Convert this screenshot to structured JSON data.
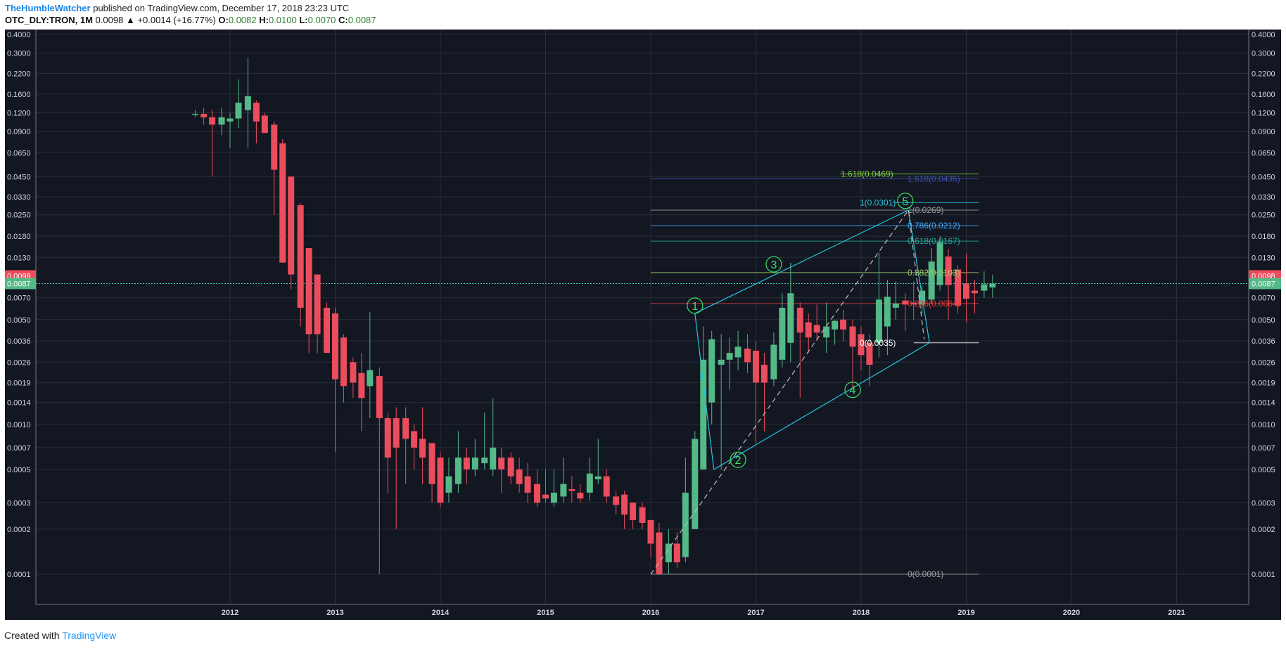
{
  "header": {
    "author": "TheHumbleWatcher",
    "published": "published on TradingView.com, December 17, 2018 23:23 UTC",
    "symbol": "OTC_DLY:TRON, 1M",
    "last": "0.0098",
    "change": "▲ +0.0014 (+16.77%)",
    "o_label": "O:",
    "o_value": "0.0082",
    "h_label": "H:",
    "h_value": "0.0100",
    "l_label": "L:",
    "l_value": "0.0070",
    "c_label": "C:",
    "c_value": "0.0087"
  },
  "footer": {
    "created_with": "Created with",
    "brand": "TradingView"
  },
  "colors": {
    "background": "#131722",
    "up": "#53b987",
    "down": "#eb4d5c",
    "grid": "#2a2e39",
    "axis_text": "#d1d4dc",
    "wave": "#26c6da"
  },
  "chart_data": {
    "type": "candlestick",
    "scale": "log",
    "ylim": [
      0.0001,
      0.4
    ],
    "y_ticks": [
      "0.4000",
      "0.3000",
      "0.2200",
      "0.1600",
      "0.1200",
      "0.0900",
      "0.0650",
      "0.0450",
      "0.0330",
      "0.0250",
      "0.0180",
      "0.0130",
      "0.0098",
      "0.0087",
      "0.0070",
      "0.0050",
      "0.0036",
      "0.0026",
      "0.0019",
      "0.0014",
      "0.0010",
      "0.0007",
      "0.0005",
      "0.0003",
      "0.0002",
      "0.0001"
    ],
    "x_ticks": [
      "2012",
      "2013",
      "2014",
      "2015",
      "2016",
      "2017",
      "2018",
      "2019",
      "2020",
      "2021"
    ],
    "price_badges": [
      {
        "label": "0.0098",
        "value": 0.0098,
        "color": "#eb4d5c"
      },
      {
        "label": "0.0087",
        "value": 0.0087,
        "color": "#53b987"
      }
    ],
    "candles": [
      {
        "t": 2011.67,
        "o": 0.118,
        "h": 0.125,
        "l": 0.112,
        "c": 0.118
      },
      {
        "t": 2011.75,
        "o": 0.118,
        "h": 0.13,
        "l": 0.1,
        "c": 0.112
      },
      {
        "t": 2011.83,
        "o": 0.112,
        "h": 0.125,
        "l": 0.045,
        "c": 0.1
      },
      {
        "t": 2011.92,
        "o": 0.1,
        "h": 0.13,
        "l": 0.085,
        "c": 0.112
      },
      {
        "t": 2012.0,
        "o": 0.105,
        "h": 0.12,
        "l": 0.07,
        "c": 0.11
      },
      {
        "t": 2012.08,
        "o": 0.11,
        "h": 0.2,
        "l": 0.095,
        "c": 0.14
      },
      {
        "t": 2012.17,
        "o": 0.125,
        "h": 0.28,
        "l": 0.07,
        "c": 0.155
      },
      {
        "t": 2012.25,
        "o": 0.14,
        "h": 0.145,
        "l": 0.075,
        "c": 0.105
      },
      {
        "t": 2012.33,
        "o": 0.115,
        "h": 0.12,
        "l": 0.09,
        "c": 0.088
      },
      {
        "t": 2012.42,
        "o": 0.1,
        "h": 0.105,
        "l": 0.025,
        "c": 0.05
      },
      {
        "t": 2012.5,
        "o": 0.075,
        "h": 0.08,
        "l": 0.012,
        "c": 0.012
      },
      {
        "t": 2012.58,
        "o": 0.045,
        "h": 0.045,
        "l": 0.008,
        "c": 0.01
      },
      {
        "t": 2012.67,
        "o": 0.029,
        "h": 0.03,
        "l": 0.0045,
        "c": 0.006
      },
      {
        "t": 2012.75,
        "o": 0.015,
        "h": 0.015,
        "l": 0.003,
        "c": 0.004
      },
      {
        "t": 2012.83,
        "o": 0.01,
        "h": 0.01,
        "l": 0.003,
        "c": 0.004
      },
      {
        "t": 2012.92,
        "o": 0.006,
        "h": 0.0065,
        "l": 0.003,
        "c": 0.003
      },
      {
        "t": 2013.0,
        "o": 0.0055,
        "h": 0.006,
        "l": 0.00065,
        "c": 0.002
      },
      {
        "t": 2013.08,
        "o": 0.0038,
        "h": 0.004,
        "l": 0.0014,
        "c": 0.0018
      },
      {
        "t": 2013.17,
        "o": 0.0026,
        "h": 0.0028,
        "l": 0.0015,
        "c": 0.0019
      },
      {
        "t": 2013.25,
        "o": 0.0022,
        "h": 0.003,
        "l": 0.0009,
        "c": 0.0015
      },
      {
        "t": 2013.33,
        "o": 0.0018,
        "h": 0.0056,
        "l": 0.0011,
        "c": 0.0023
      },
      {
        "t": 2013.42,
        "o": 0.0021,
        "h": 0.0024,
        "l": 0.0001,
        "c": 0.0011
      },
      {
        "t": 2013.5,
        "o": 0.0011,
        "h": 0.0012,
        "l": 0.00035,
        "c": 0.0006
      },
      {
        "t": 2013.58,
        "o": 0.0011,
        "h": 0.0013,
        "l": 0.0002,
        "c": 0.0007
      },
      {
        "t": 2013.67,
        "o": 0.0011,
        "h": 0.0013,
        "l": 0.0004,
        "c": 0.0008
      },
      {
        "t": 2013.75,
        "o": 0.0009,
        "h": 0.001,
        "l": 0.0005,
        "c": 0.0007
      },
      {
        "t": 2013.83,
        "o": 0.0008,
        "h": 0.0013,
        "l": 0.0004,
        "c": 0.0006
      },
      {
        "t": 2013.92,
        "o": 0.00075,
        "h": 0.00075,
        "l": 0.0003,
        "c": 0.0004
      },
      {
        "t": 2014.0,
        "o": 0.0006,
        "h": 0.00065,
        "l": 0.00028,
        "c": 0.0003
      },
      {
        "t": 2014.08,
        "o": 0.00035,
        "h": 0.0006,
        "l": 0.0003,
        "c": 0.00045
      },
      {
        "t": 2014.17,
        "o": 0.0004,
        "h": 0.0009,
        "l": 0.00035,
        "c": 0.0006
      },
      {
        "t": 2014.25,
        "o": 0.0006,
        "h": 0.0007,
        "l": 0.0004,
        "c": 0.0005
      },
      {
        "t": 2014.33,
        "o": 0.0005,
        "h": 0.0008,
        "l": 0.00045,
        "c": 0.0006
      },
      {
        "t": 2014.42,
        "o": 0.00055,
        "h": 0.0012,
        "l": 0.0005,
        "c": 0.0006
      },
      {
        "t": 2014.5,
        "o": 0.0005,
        "h": 0.0015,
        "l": 0.00045,
        "c": 0.0007
      },
      {
        "t": 2014.58,
        "o": 0.0006,
        "h": 0.0007,
        "l": 0.00035,
        "c": 0.0005
      },
      {
        "t": 2014.67,
        "o": 0.0006,
        "h": 0.00065,
        "l": 0.0004,
        "c": 0.00045
      },
      {
        "t": 2014.75,
        "o": 0.0005,
        "h": 0.0006,
        "l": 0.00035,
        "c": 0.0004
      },
      {
        "t": 2014.83,
        "o": 0.00045,
        "h": 0.00055,
        "l": 0.0003,
        "c": 0.00035
      },
      {
        "t": 2014.92,
        "o": 0.0004,
        "h": 0.0005,
        "l": 0.00028,
        "c": 0.0003
      },
      {
        "t": 2015.0,
        "o": 0.00034,
        "h": 0.0005,
        "l": 0.0003,
        "c": 0.00032
      },
      {
        "t": 2015.08,
        "o": 0.0003,
        "h": 0.0005,
        "l": 0.00028,
        "c": 0.00035
      },
      {
        "t": 2015.17,
        "o": 0.00033,
        "h": 0.0006,
        "l": 0.0003,
        "c": 0.0004
      },
      {
        "t": 2015.25,
        "o": 0.00037,
        "h": 0.00045,
        "l": 0.0003,
        "c": 0.00036
      },
      {
        "t": 2015.33,
        "o": 0.00035,
        "h": 0.0004,
        "l": 0.0003,
        "c": 0.00032
      },
      {
        "t": 2015.42,
        "o": 0.00035,
        "h": 0.0006,
        "l": 0.00031,
        "c": 0.00047
      },
      {
        "t": 2015.5,
        "o": 0.00043,
        "h": 0.0008,
        "l": 0.0004,
        "c": 0.00045
      },
      {
        "t": 2015.58,
        "o": 0.00045,
        "h": 0.0005,
        "l": 0.0003,
        "c": 0.00033
      },
      {
        "t": 2015.67,
        "o": 0.00033,
        "h": 0.00036,
        "l": 0.00025,
        "c": 0.00029
      },
      {
        "t": 2015.75,
        "o": 0.00034,
        "h": 0.00036,
        "l": 0.0002,
        "c": 0.00025
      },
      {
        "t": 2015.83,
        "o": 0.0003,
        "h": 0.0003,
        "l": 0.0002,
        "c": 0.00023
      },
      {
        "t": 2015.92,
        "o": 0.00028,
        "h": 0.0003,
        "l": 0.0002,
        "c": 0.00022
      },
      {
        "t": 2016.0,
        "o": 0.00023,
        "h": 0.00023,
        "l": 0.00013,
        "c": 0.00016
      },
      {
        "t": 2016.08,
        "o": 0.00019,
        "h": 0.00022,
        "l": 0.0001,
        "c": 0.0001
      },
      {
        "t": 2016.17,
        "o": 0.00012,
        "h": 0.0002,
        "l": 0.0001,
        "c": 0.00016
      },
      {
        "t": 2016.25,
        "o": 0.00016,
        "h": 0.00019,
        "l": 0.00011,
        "c": 0.00012
      },
      {
        "t": 2016.33,
        "o": 0.00013,
        "h": 0.0006,
        "l": 0.00012,
        "c": 0.00035
      },
      {
        "t": 2016.42,
        "o": 0.0002,
        "h": 0.0009,
        "l": 0.0002,
        "c": 0.0008
      },
      {
        "t": 2016.5,
        "o": 0.0005,
        "h": 0.0045,
        "l": 0.0005,
        "c": 0.0027
      },
      {
        "t": 2016.58,
        "o": 0.0014,
        "h": 0.0042,
        "l": 0.001,
        "c": 0.0037
      },
      {
        "t": 2016.67,
        "o": 0.0025,
        "h": 0.004,
        "l": 0.0005,
        "c": 0.0027
      },
      {
        "t": 2016.75,
        "o": 0.0027,
        "h": 0.0038,
        "l": 0.0017,
        "c": 0.003
      },
      {
        "t": 2016.83,
        "o": 0.0028,
        "h": 0.0042,
        "l": 0.0023,
        "c": 0.0033
      },
      {
        "t": 2016.92,
        "o": 0.0032,
        "h": 0.004,
        "l": 0.0022,
        "c": 0.0026
      },
      {
        "t": 2017.0,
        "o": 0.0031,
        "h": 0.0036,
        "l": 0.00075,
        "c": 0.0019
      },
      {
        "t": 2017.08,
        "o": 0.0025,
        "h": 0.003,
        "l": 0.0009,
        "c": 0.0019
      },
      {
        "t": 2017.17,
        "o": 0.002,
        "h": 0.0041,
        "l": 0.0018,
        "c": 0.0034
      },
      {
        "t": 2017.25,
        "o": 0.0027,
        "h": 0.0075,
        "l": 0.0024,
        "c": 0.006
      },
      {
        "t": 2017.33,
        "o": 0.0035,
        "h": 0.012,
        "l": 0.0026,
        "c": 0.0075
      },
      {
        "t": 2017.42,
        "o": 0.006,
        "h": 0.0065,
        "l": 0.0015,
        "c": 0.0041
      },
      {
        "t": 2017.5,
        "o": 0.0048,
        "h": 0.0055,
        "l": 0.003,
        "c": 0.0038
      },
      {
        "t": 2017.58,
        "o": 0.0046,
        "h": 0.0063,
        "l": 0.0036,
        "c": 0.0041
      },
      {
        "t": 2017.67,
        "o": 0.0038,
        "h": 0.0065,
        "l": 0.003,
        "c": 0.0045
      },
      {
        "t": 2017.75,
        "o": 0.0043,
        "h": 0.005,
        "l": 0.0034,
        "c": 0.0049
      },
      {
        "t": 2017.83,
        "o": 0.005,
        "h": 0.0058,
        "l": 0.0036,
        "c": 0.0043
      },
      {
        "t": 2017.92,
        "o": 0.0045,
        "h": 0.005,
        "l": 0.0017,
        "c": 0.0033
      },
      {
        "t": 2018.0,
        "o": 0.004,
        "h": 0.0045,
        "l": 0.0023,
        "c": 0.0029
      },
      {
        "t": 2018.08,
        "o": 0.0035,
        "h": 0.004,
        "l": 0.0018,
        "c": 0.0025
      },
      {
        "t": 2018.17,
        "o": 0.0035,
        "h": 0.014,
        "l": 0.0028,
        "c": 0.0068
      },
      {
        "t": 2018.25,
        "o": 0.0045,
        "h": 0.0092,
        "l": 0.0029,
        "c": 0.0071
      },
      {
        "t": 2018.33,
        "o": 0.006,
        "h": 0.009,
        "l": 0.005,
        "c": 0.0064
      },
      {
        "t": 2018.42,
        "o": 0.0067,
        "h": 0.0075,
        "l": 0.0042,
        "c": 0.0063
      },
      {
        "t": 2018.5,
        "o": 0.0065,
        "h": 0.009,
        "l": 0.005,
        "c": 0.0063
      },
      {
        "t": 2018.58,
        "o": 0.0063,
        "h": 0.0085,
        "l": 0.0055,
        "c": 0.0078
      },
      {
        "t": 2018.67,
        "o": 0.0068,
        "h": 0.015,
        "l": 0.0064,
        "c": 0.0122
      },
      {
        "t": 2018.75,
        "o": 0.0085,
        "h": 0.018,
        "l": 0.0078,
        "c": 0.0165
      },
      {
        "t": 2018.83,
        "o": 0.0132,
        "h": 0.0148,
        "l": 0.005,
        "c": 0.0085
      },
      {
        "t": 2018.92,
        "o": 0.0108,
        "h": 0.0115,
        "l": 0.0055,
        "c": 0.0062
      },
      {
        "t": 2019.0,
        "o": 0.0087,
        "h": 0.0138,
        "l": 0.0048,
        "c": 0.0069
      },
      {
        "t": 2019.08,
        "o": 0.0078,
        "h": 0.0092,
        "l": 0.0055,
        "c": 0.0075
      },
      {
        "t": 2019.17,
        "o": 0.0078,
        "h": 0.0105,
        "l": 0.007,
        "c": 0.0086
      },
      {
        "t": 2019.25,
        "o": 0.0082,
        "h": 0.01,
        "l": 0.007,
        "c": 0.0087
      }
    ],
    "fib_levels": [
      {
        "label": "1.618(0.0469)",
        "value": 0.0469,
        "color": "#7fd33a",
        "x0": 2017.8,
        "x1": 2019.12
      },
      {
        "label": "1.618(0.0435)",
        "value": 0.0435,
        "color": "#3f51b5",
        "x0": 2016.0,
        "x1": 2019.12
      },
      {
        "label": "1(0.0301)",
        "value": 0.0301,
        "color": "#26c6da",
        "x0": 2018.3,
        "x1": 2019.12
      },
      {
        "label": "1(0.0269)",
        "value": 0.0269,
        "color": "#9e9e9e",
        "x0": 2016.0,
        "x1": 2019.12
      },
      {
        "label": "0.786(0.0212)",
        "value": 0.0212,
        "color": "#42a5f5",
        "x0": 2016.0,
        "x1": 2019.12
      },
      {
        "label": "0.618(0.0167)",
        "value": 0.0167,
        "color": "#26a69a",
        "x0": 2016.0,
        "x1": 2019.12
      },
      {
        "label": "0.382(0.0103)",
        "value": 0.0103,
        "color": "#9ccc65",
        "x0": 2016.0,
        "x1": 2019.12
      },
      {
        "label": "0.236(0.0064)",
        "value": 0.0064,
        "color": "#e53935",
        "x0": 2016.0,
        "x1": 2019.12
      },
      {
        "label": "0(0.0035)",
        "value": 0.0035,
        "color": "#ffffff",
        "x0": 2018.5,
        "x1": 2019.12
      },
      {
        "label": "0(0.0001)",
        "value": 0.0001,
        "color": "#9e9e9e",
        "x0": 2016.0,
        "x1": 2019.12
      }
    ],
    "waves": [
      {
        "label": "1",
        "t": 2016.42,
        "v": 0.0062
      },
      {
        "label": "2",
        "t": 2016.83,
        "v": 0.00058
      },
      {
        "label": "3",
        "t": 2017.17,
        "v": 0.0117
      },
      {
        "label": "4",
        "t": 2017.92,
        "v": 0.0017
      },
      {
        "label": "5",
        "t": 2018.42,
        "v": 0.031
      }
    ],
    "channel_upper": [
      [
        2016.42,
        0.0055
      ],
      [
        2018.45,
        0.0269
      ]
    ],
    "channel_lower": [
      [
        2016.6,
        0.0005
      ],
      [
        2018.65,
        0.0035
      ]
    ],
    "channel_right": [
      [
        2018.45,
        0.0269
      ],
      [
        2018.65,
        0.0035
      ]
    ],
    "dashed_trend": [
      [
        2016.0,
        0.0001
      ],
      [
        2018.45,
        0.0269
      ],
      [
        2018.6,
        0.0037
      ]
    ]
  }
}
